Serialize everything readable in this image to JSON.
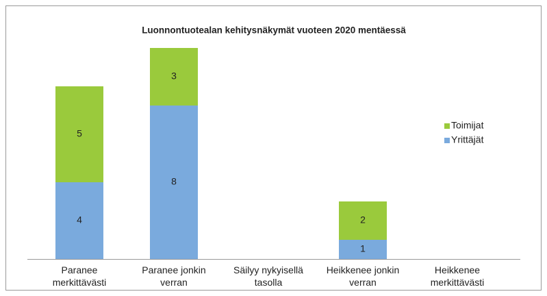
{
  "chart_data": {
    "type": "stacked_bar",
    "title": "Luonnontuotealan kehitysnäkymät vuoteen 2020 mentäessä",
    "categories": [
      "Paranee merkittävästi",
      "Paranee jonkin verran",
      "Säilyy nykyisellä tasolla",
      "Heikkenee jonkin verran",
      "Heikkenee merkittävästi"
    ],
    "series": [
      {
        "name": "Yrittäjät",
        "color": "#7aaadd",
        "values": [
          4,
          8,
          0,
          1,
          0
        ]
      },
      {
        "name": "Toimijat",
        "color": "#9aca3c",
        "values": [
          5,
          3,
          0,
          2,
          0
        ]
      }
    ],
    "ylim": [
      0,
      12
    ],
    "legend": "right"
  }
}
